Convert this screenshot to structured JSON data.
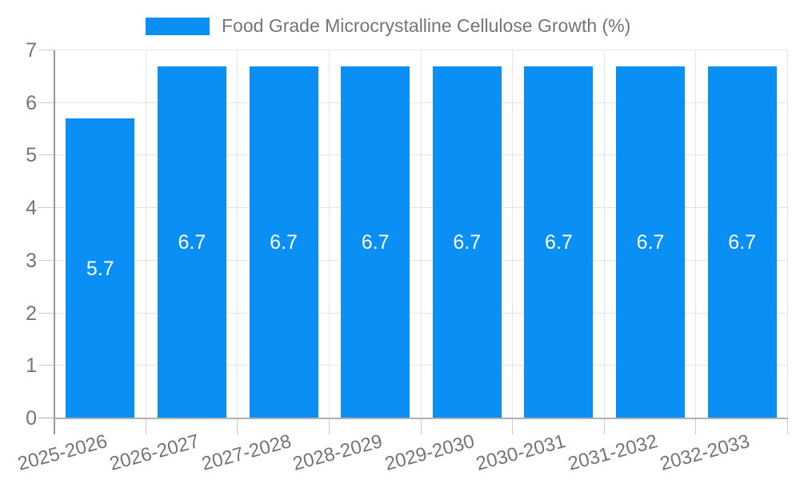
{
  "legend": {
    "label": "Food Grade Microcrystalline Cellulose Growth (%)"
  },
  "chart_data": {
    "type": "bar",
    "title": "Food Grade Microcrystalline Cellulose Growth (%)",
    "series_name": "Food Grade Microcrystalline Cellulose Growth (%)",
    "categories": [
      "2025-2026",
      "2026-2027",
      "2027-2028",
      "2028-2029",
      "2029-2030",
      "2030-2031",
      "2031-2032",
      "2032-2033"
    ],
    "values": [
      5.7,
      6.7,
      6.7,
      6.7,
      6.7,
      6.7,
      6.7,
      6.7
    ],
    "xlabel": "",
    "ylabel": "",
    "ylim": [
      0,
      7
    ],
    "yticks": [
      0,
      1,
      2,
      3,
      4,
      5,
      6,
      7
    ],
    "grid": true,
    "legend_position": "top",
    "colors": {
      "bar": "#0a90f5",
      "grid": "#e4e4e4",
      "x_axis": "#b0b0b0",
      "y_axis": "#9a9a9a",
      "tick": "#cccccc",
      "label_text": "#757575",
      "value_label": "#ffffff",
      "background": "#ffffff"
    }
  }
}
